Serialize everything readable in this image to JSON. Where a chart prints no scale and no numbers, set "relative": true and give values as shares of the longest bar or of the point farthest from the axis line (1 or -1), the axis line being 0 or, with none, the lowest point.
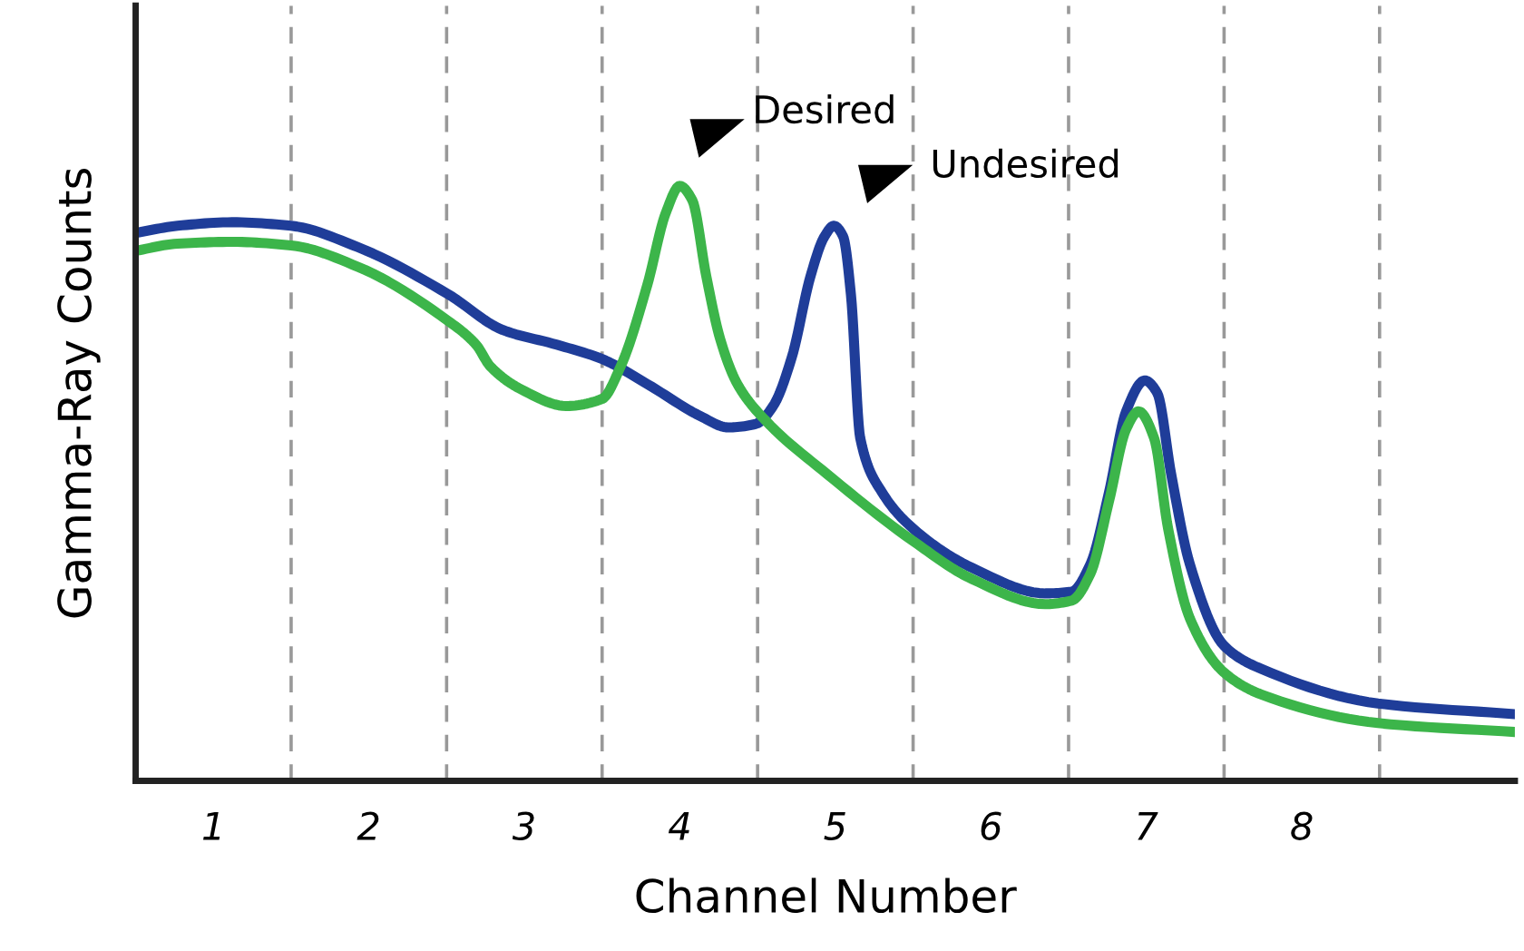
{
  "chart_data": {
    "type": "line",
    "relative": true,
    "xlabel": "Channel Number",
    "ylabel": "Gamma-Ray Counts",
    "xlim": [
      0.5,
      9.37
    ],
    "xticks": [
      1,
      2,
      3,
      4,
      5,
      6,
      7,
      8
    ],
    "tick_labels": "x",
    "grid": false,
    "legend": false,
    "marker": "none",
    "line_style": "solid",
    "series": [
      {
        "color": "#1f3d99",
        "x": [
          0.5,
          0.77,
          1.12,
          1.5,
          1.93,
          2.51,
          2.86,
          3.21,
          3.5,
          3.79,
          4.14,
          4.31,
          4.49,
          4.6,
          4.72,
          4.84,
          4.93,
          4.99,
          5.05,
          5.1,
          5.16,
          5.3,
          5.5,
          5.88,
          6.35,
          6.52,
          6.64,
          6.76,
          6.87,
          6.99,
          7.07,
          7.16,
          7.28,
          7.5,
          7.74,
          8.49,
          9.37
        ],
        "values": [
          0.921,
          0.933,
          0.939,
          0.933,
          0.897,
          0.818,
          0.758,
          0.733,
          0.709,
          0.667,
          0.612,
          0.594,
          0.6,
          0.63,
          0.712,
          0.848,
          0.915,
          0.933,
          0.915,
          0.818,
          0.576,
          0.485,
          0.424,
          0.358,
          0.315,
          0.318,
          0.364,
          0.485,
          0.621,
          0.673,
          0.652,
          0.515,
          0.364,
          0.227,
          0.188,
          0.13,
          0.112
        ]
      },
      {
        "color": "#3cb54a",
        "x": [
          0.5,
          0.77,
          1.12,
          1.5,
          1.93,
          2.51,
          2.69,
          2.78,
          2.98,
          3.27,
          3.5,
          3.62,
          3.79,
          3.91,
          4.0,
          4.08,
          4.17,
          4.26,
          4.37,
          4.55,
          4.95,
          5.5,
          5.88,
          6.35,
          6.52,
          6.64,
          6.76,
          6.87,
          6.95,
          7.05,
          7.14,
          7.28,
          7.5,
          7.74,
          8.49,
          9.37
        ],
        "values": [
          0.891,
          0.903,
          0.906,
          0.9,
          0.864,
          0.773,
          0.733,
          0.697,
          0.658,
          0.63,
          0.642,
          0.697,
          0.833,
          0.955,
          1,
          0.976,
          0.848,
          0.742,
          0.667,
          0.606,
          0.515,
          0.403,
          0.339,
          0.297,
          0.303,
          0.348,
          0.47,
          0.591,
          0.621,
          0.576,
          0.424,
          0.273,
          0.182,
          0.145,
          0.097,
          0.082
        ]
      }
    ],
    "ref_lines": [
      {
        "axis": "x",
        "value": 1.5,
        "color": "#999999",
        "line_style": "dashed"
      },
      {
        "axis": "x",
        "value": 2.5,
        "color": "#999999",
        "line_style": "dashed"
      },
      {
        "axis": "x",
        "value": 3.5,
        "color": "#999999",
        "line_style": "dashed"
      },
      {
        "axis": "x",
        "value": 4.5,
        "color": "#999999",
        "line_style": "dashed"
      },
      {
        "axis": "x",
        "value": 5.5,
        "color": "#999999",
        "line_style": "dashed"
      },
      {
        "axis": "x",
        "value": 6.5,
        "color": "#999999",
        "line_style": "dashed"
      },
      {
        "axis": "x",
        "value": 7.5,
        "color": "#999999",
        "line_style": "dashed"
      },
      {
        "axis": "x",
        "value": 8.5,
        "color": "#999999",
        "line_style": "dashed"
      }
    ],
    "annotations": [
      "Desired",
      "Undesired"
    ]
  }
}
